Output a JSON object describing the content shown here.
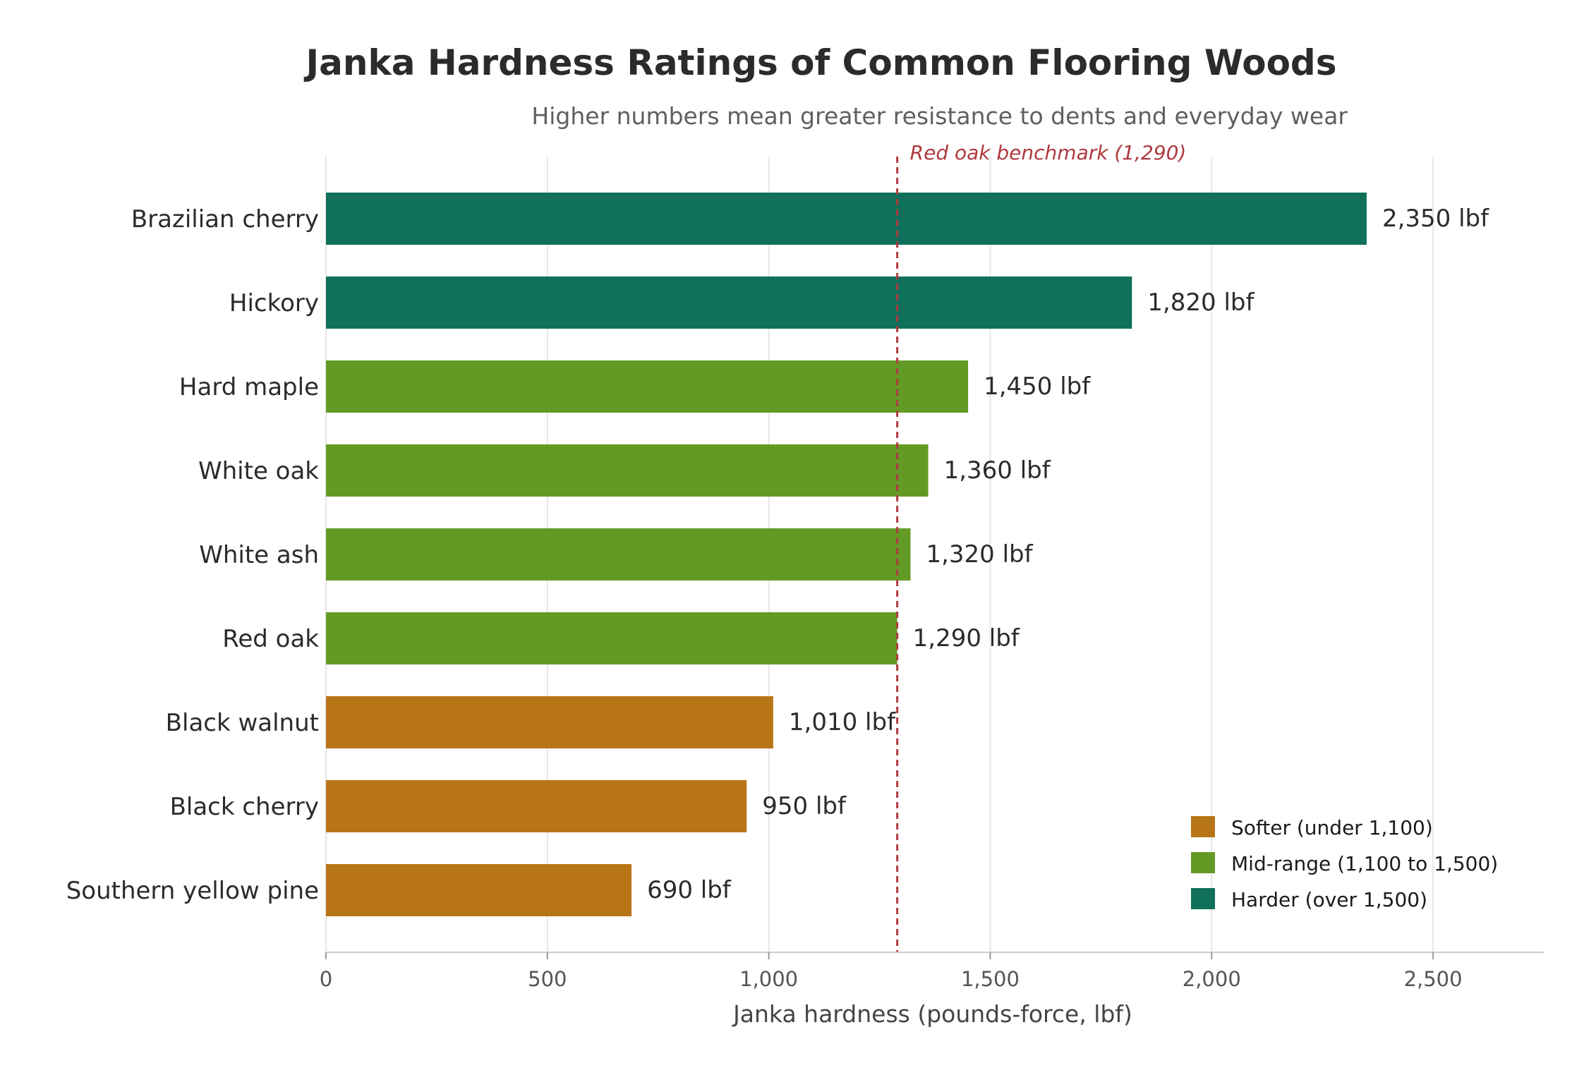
{
  "chart_data": {
    "type": "bar",
    "orientation": "horizontal",
    "title": "Janka Hardness Ratings of Common Flooring Woods",
    "subtitle": "Higher numbers mean greater resistance to dents and everyday wear",
    "xlabel": "Janka hardness (pounds-force, lbf)",
    "ylabel": "",
    "xlim": [
      0,
      2750
    ],
    "xticks": [
      0,
      500,
      1000,
      1500,
      2000,
      2500
    ],
    "xtick_labels": [
      "0",
      "500",
      "1,000",
      "1,500",
      "2,000",
      "2,500"
    ],
    "grid": "vertical",
    "categories": [
      "Brazilian cherry",
      "Hickory",
      "Hard maple",
      "White oak",
      "White ash",
      "Red oak",
      "Black walnut",
      "Black cherry",
      "Southern yellow pine"
    ],
    "values": [
      2350,
      1820,
      1450,
      1360,
      1320,
      1290,
      1010,
      950,
      690
    ],
    "value_labels": [
      "2,350 lbf",
      "1,820 lbf",
      "1,450 lbf",
      "1,360 lbf",
      "1,320 lbf",
      "1,290 lbf",
      "1,010 lbf",
      "950 lbf",
      "690 lbf"
    ],
    "groups": [
      "harder",
      "harder",
      "mid",
      "mid",
      "mid",
      "mid",
      "softer",
      "softer",
      "softer"
    ],
    "colors": {
      "softer": "#b87518",
      "mid": "#639a25",
      "harder": "#10705a"
    },
    "reference_line": {
      "value": 1290,
      "label": "Red oak benchmark (1,290)",
      "color": "#b0393f"
    },
    "legend": {
      "placement": "lower-right",
      "items": [
        {
          "group": "softer",
          "label": "Softer  (under 1,100)"
        },
        {
          "group": "mid",
          "label": "Mid-range  (1,100 to 1,500)"
        },
        {
          "group": "harder",
          "label": "Harder  (over 1,500)"
        }
      ]
    }
  }
}
